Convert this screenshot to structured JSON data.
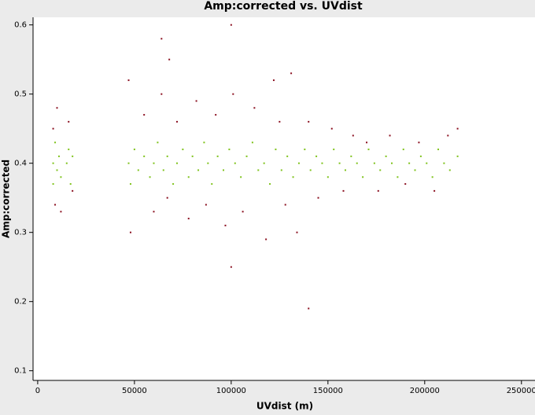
{
  "chart_data": {
    "type": "scatter",
    "title": "Amp:corrected vs. UVdist",
    "x_label": "UVdist (m)",
    "y_label": "Amp:corrected",
    "xlim": [
      -2400,
      257000
    ],
    "ylim": [
      0.086,
      0.611
    ],
    "xticks": [
      0,
      50000,
      100000,
      150000,
      200000,
      250000
    ],
    "yticks": [
      0.1,
      0.2,
      0.3,
      0.4,
      0.5,
      0.6
    ],
    "series": [
      {
        "color": "#7fc31c",
        "x": [
          8000,
          8000,
          9000,
          10000,
          11000,
          12000,
          15000,
          16000,
          17000,
          18000,
          47000,
          48000,
          50000,
          52000,
          55000,
          58000,
          60000,
          62000,
          65000,
          67000,
          70000,
          72000,
          75000,
          78000,
          80000,
          83000,
          86000,
          88000,
          90000,
          93000,
          96000,
          99000,
          102000,
          105000,
          108000,
          111000,
          114000,
          117000,
          120000,
          123000,
          126000,
          129000,
          132000,
          135000,
          138000,
          141000,
          144000,
          147000,
          150000,
          153000,
          156000,
          159000,
          162000,
          165000,
          168000,
          171000,
          174000,
          177000,
          180000,
          183000,
          186000,
          189000,
          192000,
          195000,
          198000,
          201000,
          204000,
          207000,
          210000,
          213000,
          217000
        ],
        "y": [
          0.4,
          0.37,
          0.43,
          0.39,
          0.41,
          0.38,
          0.4,
          0.42,
          0.37,
          0.41,
          0.4,
          0.37,
          0.42,
          0.39,
          0.41,
          0.38,
          0.4,
          0.43,
          0.39,
          0.41,
          0.37,
          0.4,
          0.42,
          0.38,
          0.41,
          0.39,
          0.43,
          0.4,
          0.37,
          0.41,
          0.39,
          0.42,
          0.4,
          0.38,
          0.41,
          0.43,
          0.39,
          0.4,
          0.37,
          0.42,
          0.39,
          0.41,
          0.38,
          0.4,
          0.42,
          0.39,
          0.41,
          0.4,
          0.38,
          0.42,
          0.4,
          0.39,
          0.41,
          0.4,
          0.38,
          0.42,
          0.4,
          0.39,
          0.41,
          0.4,
          0.38,
          0.42,
          0.4,
          0.39,
          0.41,
          0.4,
          0.38,
          0.42,
          0.4,
          0.39,
          0.41
        ]
      },
      {
        "color": "#8b1020",
        "x": [
          8000,
          9000,
          10000,
          12000,
          16000,
          18000,
          47000,
          48000,
          55000,
          60000,
          64000,
          67000,
          68000,
          72000,
          78000,
          82000,
          87000,
          92000,
          97000,
          101000,
          106000,
          112000,
          118000,
          122000,
          125000,
          128000,
          131000,
          134000,
          140000,
          145000,
          152000,
          158000,
          163000,
          170000,
          176000,
          182000,
          190000,
          197000,
          205000,
          212000,
          217000,
          100000,
          140000,
          64000,
          100000
        ],
        "y": [
          0.45,
          0.34,
          0.48,
          0.33,
          0.46,
          0.36,
          0.52,
          0.3,
          0.47,
          0.33,
          0.5,
          0.35,
          0.55,
          0.46,
          0.32,
          0.49,
          0.34,
          0.47,
          0.31,
          0.5,
          0.33,
          0.48,
          0.29,
          0.52,
          0.46,
          0.34,
          0.53,
          0.3,
          0.46,
          0.35,
          0.45,
          0.36,
          0.44,
          0.43,
          0.36,
          0.44,
          0.37,
          0.43,
          0.36,
          0.44,
          0.45,
          0.25,
          0.19,
          0.58,
          0.6
        ]
      }
    ]
  }
}
